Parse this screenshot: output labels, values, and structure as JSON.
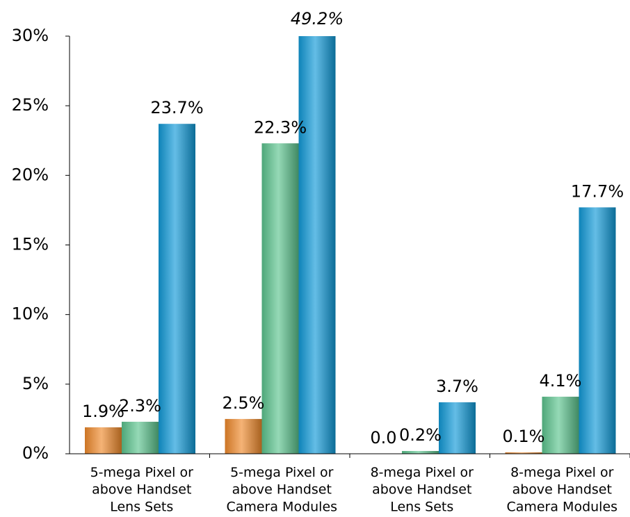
{
  "chart_data": {
    "type": "bar",
    "categories": [
      "5-mega Pixel or\nabove Handset\nLens Sets",
      "5-mega Pixel or\nabove Handset\nCamera Modules",
      "8-mega Pixel or\nabove Handset\nLens Sets",
      "8-mega Pixel or\nabove Handset\nCamera Modules"
    ],
    "series": [
      {
        "color": "#f08a2c",
        "values": [
          1.9,
          2.5,
          0.0,
          0.1
        ],
        "value_labels": [
          "1.9%",
          "2.5%",
          "0.0",
          "0.1%"
        ]
      },
      {
        "color": "#5cc48e",
        "values": [
          2.3,
          22.3,
          0.2,
          4.1
        ],
        "value_labels": [
          "2.3%",
          "22.3%",
          "0.2%",
          "4.1%"
        ]
      },
      {
        "color": "#109ad8",
        "values": [
          23.7,
          49.2,
          3.7,
          17.7
        ],
        "value_labels": [
          "23.7%",
          "49.2%",
          "3.7%",
          "17.7%"
        ]
      }
    ],
    "ylim": [
      0,
      30
    ],
    "yticks": [
      {
        "value": 0,
        "label": "0%"
      },
      {
        "value": 5,
        "label": "5%"
      },
      {
        "value": 10,
        "label": "10%"
      },
      {
        "value": 15,
        "label": "15%"
      },
      {
        "value": 20,
        "label": "20%"
      },
      {
        "value": 25,
        "label": "25%"
      },
      {
        "value": 30,
        "label": "30%"
      }
    ]
  }
}
